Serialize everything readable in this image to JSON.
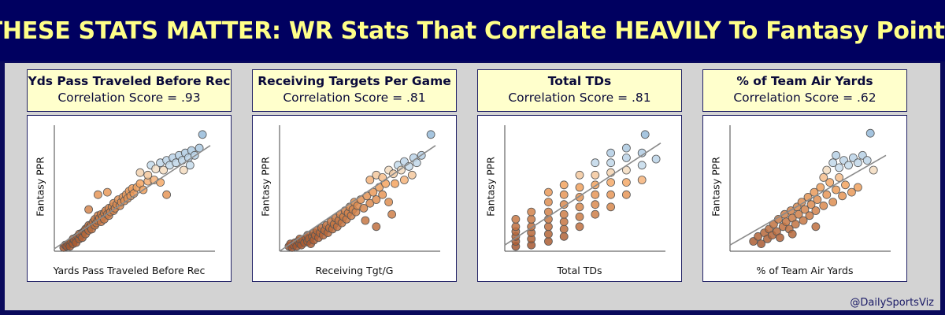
{
  "header": {
    "title": "THESE STATS MATTER: WR Stats That Correlate HEAVILY To Fantasy Points"
  },
  "credit": "@DailySportsViz",
  "colors": {
    "title_text": "#ffff88",
    "banner_bg": "#000060",
    "panel_bg": "#ffffcc",
    "stage_bg": "#d3d3d3",
    "low": "#a0522d",
    "mid": "#f4a460",
    "high": "#8eb5d6"
  },
  "chart_data": [
    {
      "type": "scatter",
      "title": "Yds Pass Traveled Before Rec",
      "subtitle": "Correlation Score = .93",
      "xlabel": "Yards Pass Traveled Before Rec",
      "ylabel": "Fantasy PPR",
      "correlation": 0.93,
      "xlim": [
        0,
        1
      ],
      "ylim": [
        0,
        1
      ],
      "trendline": [
        [
          0,
          0.02
        ],
        [
          1,
          0.86
        ]
      ],
      "points": [
        [
          0.06,
          0.03
        ],
        [
          0.07,
          0.05
        ],
        [
          0.08,
          0.04
        ],
        [
          0.09,
          0.06
        ],
        [
          0.1,
          0.07
        ],
        [
          0.1,
          0.04
        ],
        [
          0.11,
          0.08
        ],
        [
          0.12,
          0.06
        ],
        [
          0.12,
          0.1
        ],
        [
          0.13,
          0.09
        ],
        [
          0.14,
          0.11
        ],
        [
          0.14,
          0.07
        ],
        [
          0.15,
          0.12
        ],
        [
          0.16,
          0.1
        ],
        [
          0.16,
          0.14
        ],
        [
          0.17,
          0.13
        ],
        [
          0.18,
          0.15
        ],
        [
          0.18,
          0.11
        ],
        [
          0.19,
          0.16
        ],
        [
          0.2,
          0.18
        ],
        [
          0.2,
          0.14
        ],
        [
          0.21,
          0.19
        ],
        [
          0.22,
          0.17
        ],
        [
          0.22,
          0.21
        ],
        [
          0.23,
          0.2
        ],
        [
          0.24,
          0.22
        ],
        [
          0.24,
          0.18
        ],
        [
          0.25,
          0.24
        ],
        [
          0.26,
          0.21
        ],
        [
          0.26,
          0.26
        ],
        [
          0.27,
          0.23
        ],
        [
          0.28,
          0.25
        ],
        [
          0.28,
          0.29
        ],
        [
          0.29,
          0.27
        ],
        [
          0.3,
          0.24
        ],
        [
          0.3,
          0.3
        ],
        [
          0.31,
          0.28
        ],
        [
          0.32,
          0.31
        ],
        [
          0.32,
          0.26
        ],
        [
          0.33,
          0.33
        ],
        [
          0.34,
          0.3
        ],
        [
          0.35,
          0.35
        ],
        [
          0.35,
          0.29
        ],
        [
          0.36,
          0.32
        ],
        [
          0.37,
          0.36
        ],
        [
          0.38,
          0.33
        ],
        [
          0.38,
          0.39
        ],
        [
          0.39,
          0.35
        ],
        [
          0.4,
          0.38
        ],
        [
          0.41,
          0.42
        ],
        [
          0.42,
          0.37
        ],
        [
          0.43,
          0.4
        ],
        [
          0.44,
          0.44
        ],
        [
          0.45,
          0.41
        ],
        [
          0.46,
          0.46
        ],
        [
          0.47,
          0.43
        ],
        [
          0.48,
          0.49
        ],
        [
          0.49,
          0.45
        ],
        [
          0.5,
          0.51
        ],
        [
          0.51,
          0.47
        ],
        [
          0.53,
          0.52
        ],
        [
          0.55,
          0.55
        ],
        [
          0.57,
          0.5
        ],
        [
          0.6,
          0.57
        ],
        [
          0.64,
          0.58
        ],
        [
          0.68,
          0.56
        ],
        [
          0.72,
          0.46
        ],
        [
          0.28,
          0.46
        ],
        [
          0.34,
          0.48
        ],
        [
          0.22,
          0.34
        ],
        [
          0.55,
          0.64
        ],
        [
          0.6,
          0.62
        ],
        [
          0.62,
          0.7
        ],
        [
          0.65,
          0.67
        ],
        [
          0.68,
          0.72
        ],
        [
          0.7,
          0.66
        ],
        [
          0.72,
          0.74
        ],
        [
          0.74,
          0.7
        ],
        [
          0.76,
          0.76
        ],
        [
          0.78,
          0.72
        ],
        [
          0.8,
          0.78
        ],
        [
          0.82,
          0.74
        ],
        [
          0.84,
          0.8
        ],
        [
          0.86,
          0.76
        ],
        [
          0.88,
          0.82
        ],
        [
          0.9,
          0.78
        ],
        [
          0.93,
          0.84
        ],
        [
          0.87,
          0.7
        ],
        [
          0.83,
          0.66
        ],
        [
          0.95,
          0.95
        ]
      ]
    },
    {
      "type": "scatter",
      "title": "Receiving Targets Per Game",
      "subtitle": "Correlation Score = .81",
      "xlabel": "Receiving Tgt/G",
      "ylabel": "Fantasy PPR",
      "correlation": 0.81,
      "xlim": [
        0,
        1
      ],
      "ylim": [
        0,
        1
      ],
      "trendline": [
        [
          0,
          0.0
        ],
        [
          1,
          0.86
        ]
      ],
      "points": [
        [
          0.06,
          0.04
        ],
        [
          0.07,
          0.06
        ],
        [
          0.08,
          0.03
        ],
        [
          0.09,
          0.05
        ],
        [
          0.1,
          0.07
        ],
        [
          0.11,
          0.04
        ],
        [
          0.12,
          0.08
        ],
        [
          0.13,
          0.06
        ],
        [
          0.13,
          0.1
        ],
        [
          0.14,
          0.05
        ],
        [
          0.15,
          0.09
        ],
        [
          0.16,
          0.07
        ],
        [
          0.17,
          0.11
        ],
        [
          0.18,
          0.08
        ],
        [
          0.18,
          0.13
        ],
        [
          0.19,
          0.1
        ],
        [
          0.2,
          0.06
        ],
        [
          0.21,
          0.12
        ],
        [
          0.22,
          0.15
        ],
        [
          0.22,
          0.09
        ],
        [
          0.23,
          0.13
        ],
        [
          0.24,
          0.17
        ],
        [
          0.25,
          0.11
        ],
        [
          0.26,
          0.15
        ],
        [
          0.27,
          0.19
        ],
        [
          0.28,
          0.13
        ],
        [
          0.29,
          0.17
        ],
        [
          0.3,
          0.21
        ],
        [
          0.31,
          0.15
        ],
        [
          0.32,
          0.19
        ],
        [
          0.33,
          0.24
        ],
        [
          0.34,
          0.18
        ],
        [
          0.35,
          0.22
        ],
        [
          0.36,
          0.27
        ],
        [
          0.37,
          0.2
        ],
        [
          0.38,
          0.25
        ],
        [
          0.39,
          0.3
        ],
        [
          0.4,
          0.23
        ],
        [
          0.41,
          0.28
        ],
        [
          0.42,
          0.33
        ],
        [
          0.43,
          0.26
        ],
        [
          0.44,
          0.31
        ],
        [
          0.45,
          0.36
        ],
        [
          0.46,
          0.29
        ],
        [
          0.47,
          0.34
        ],
        [
          0.48,
          0.4
        ],
        [
          0.49,
          0.32
        ],
        [
          0.5,
          0.37
        ],
        [
          0.52,
          0.42
        ],
        [
          0.54,
          0.35
        ],
        [
          0.56,
          0.45
        ],
        [
          0.58,
          0.39
        ],
        [
          0.6,
          0.48
        ],
        [
          0.62,
          0.42
        ],
        [
          0.64,
          0.52
        ],
        [
          0.66,
          0.46
        ],
        [
          0.68,
          0.55
        ],
        [
          0.7,
          0.4
        ],
        [
          0.72,
          0.3
        ],
        [
          0.62,
          0.2
        ],
        [
          0.55,
          0.25
        ],
        [
          0.58,
          0.58
        ],
        [
          0.62,
          0.62
        ],
        [
          0.66,
          0.6
        ],
        [
          0.7,
          0.66
        ],
        [
          0.73,
          0.63
        ],
        [
          0.76,
          0.7
        ],
        [
          0.78,
          0.66
        ],
        [
          0.8,
          0.73
        ],
        [
          0.83,
          0.69
        ],
        [
          0.86,
          0.76
        ],
        [
          0.88,
          0.72
        ],
        [
          0.91,
          0.78
        ],
        [
          0.8,
          0.58
        ],
        [
          0.85,
          0.62
        ],
        [
          0.74,
          0.55
        ],
        [
          0.97,
          0.95
        ]
      ]
    },
    {
      "type": "scatter",
      "title": "Total TDs",
      "subtitle": "Correlation Score = .81",
      "xlabel": "Total TDs",
      "ylabel": "Fantasy PPR",
      "correlation": 0.81,
      "xlim": [
        0,
        1
      ],
      "ylim": [
        0,
        1
      ],
      "trendline": [
        [
          0,
          0.05
        ],
        [
          1,
          0.88
        ]
      ],
      "points": [
        [
          0.07,
          0.04
        ],
        [
          0.07,
          0.08
        ],
        [
          0.07,
          0.12
        ],
        [
          0.07,
          0.16
        ],
        [
          0.07,
          0.2
        ],
        [
          0.07,
          0.26
        ],
        [
          0.17,
          0.05
        ],
        [
          0.17,
          0.1
        ],
        [
          0.17,
          0.15
        ],
        [
          0.17,
          0.2
        ],
        [
          0.17,
          0.26
        ],
        [
          0.17,
          0.32
        ],
        [
          0.28,
          0.08
        ],
        [
          0.28,
          0.14
        ],
        [
          0.28,
          0.2
        ],
        [
          0.28,
          0.26
        ],
        [
          0.28,
          0.32
        ],
        [
          0.28,
          0.4
        ],
        [
          0.28,
          0.48
        ],
        [
          0.38,
          0.12
        ],
        [
          0.38,
          0.18
        ],
        [
          0.38,
          0.24
        ],
        [
          0.38,
          0.3
        ],
        [
          0.38,
          0.38
        ],
        [
          0.38,
          0.46
        ],
        [
          0.38,
          0.54
        ],
        [
          0.48,
          0.2
        ],
        [
          0.48,
          0.28
        ],
        [
          0.48,
          0.36
        ],
        [
          0.48,
          0.44
        ],
        [
          0.48,
          0.52
        ],
        [
          0.48,
          0.62
        ],
        [
          0.58,
          0.3
        ],
        [
          0.58,
          0.38
        ],
        [
          0.58,
          0.46
        ],
        [
          0.58,
          0.54
        ],
        [
          0.58,
          0.62
        ],
        [
          0.58,
          0.72
        ],
        [
          0.68,
          0.36
        ],
        [
          0.68,
          0.46
        ],
        [
          0.68,
          0.56
        ],
        [
          0.68,
          0.64
        ],
        [
          0.68,
          0.72
        ],
        [
          0.68,
          0.8
        ],
        [
          0.78,
          0.46
        ],
        [
          0.78,
          0.56
        ],
        [
          0.78,
          0.66
        ],
        [
          0.78,
          0.76
        ],
        [
          0.78,
          0.84
        ],
        [
          0.88,
          0.58
        ],
        [
          0.88,
          0.7
        ],
        [
          0.88,
          0.8
        ],
        [
          0.97,
          0.75
        ],
        [
          0.9,
          0.95
        ]
      ]
    },
    {
      "type": "scatter",
      "title": "% of Team Air Yards",
      "subtitle": "Correlation Score = .62",
      "xlabel": "% of Team Air Yards",
      "ylabel": "Fantasy PPR",
      "correlation": 0.62,
      "xlim": [
        0,
        1
      ],
      "ylim": [
        0,
        1
      ],
      "trendline": [
        [
          0,
          0.05
        ],
        [
          1,
          0.78
        ]
      ],
      "points": [
        [
          0.15,
          0.08
        ],
        [
          0.18,
          0.12
        ],
        [
          0.2,
          0.06
        ],
        [
          0.22,
          0.15
        ],
        [
          0.24,
          0.1
        ],
        [
          0.25,
          0.18
        ],
        [
          0.27,
          0.13
        ],
        [
          0.28,
          0.22
        ],
        [
          0.3,
          0.16
        ],
        [
          0.31,
          0.26
        ],
        [
          0.32,
          0.11
        ],
        [
          0.34,
          0.2
        ],
        [
          0.35,
          0.3
        ],
        [
          0.36,
          0.24
        ],
        [
          0.38,
          0.18
        ],
        [
          0.39,
          0.33
        ],
        [
          0.4,
          0.27
        ],
        [
          0.42,
          0.22
        ],
        [
          0.43,
          0.36
        ],
        [
          0.44,
          0.3
        ],
        [
          0.46,
          0.4
        ],
        [
          0.47,
          0.25
        ],
        [
          0.48,
          0.34
        ],
        [
          0.5,
          0.44
        ],
        [
          0.51,
          0.29
        ],
        [
          0.52,
          0.38
        ],
        [
          0.54,
          0.48
        ],
        [
          0.55,
          0.33
        ],
        [
          0.56,
          0.42
        ],
        [
          0.58,
          0.52
        ],
        [
          0.6,
          0.37
        ],
        [
          0.62,
          0.46
        ],
        [
          0.64,
          0.56
        ],
        [
          0.66,
          0.4
        ],
        [
          0.68,
          0.5
        ],
        [
          0.7,
          0.6
        ],
        [
          0.72,
          0.45
        ],
        [
          0.74,
          0.54
        ],
        [
          0.78,
          0.48
        ],
        [
          0.82,
          0.52
        ],
        [
          0.4,
          0.14
        ],
        [
          0.55,
          0.2
        ],
        [
          0.62,
          0.66
        ],
        [
          0.66,
          0.72
        ],
        [
          0.7,
          0.68
        ],
        [
          0.73,
          0.74
        ],
        [
          0.76,
          0.7
        ],
        [
          0.79,
          0.76
        ],
        [
          0.82,
          0.72
        ],
        [
          0.85,
          0.78
        ],
        [
          0.88,
          0.74
        ],
        [
          0.92,
          0.66
        ],
        [
          0.68,
          0.78
        ],
        [
          0.6,
          0.6
        ],
        [
          0.9,
          0.96
        ]
      ]
    }
  ]
}
